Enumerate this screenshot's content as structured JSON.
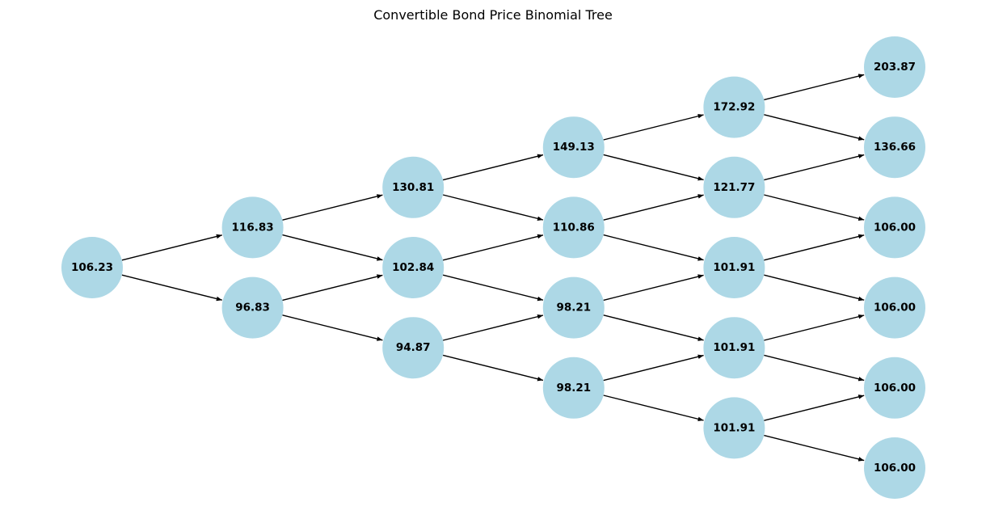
{
  "title": "Convertible Bond Price Binomial Tree",
  "colors": {
    "node_fill": "#add8e6",
    "edge": "#000000",
    "text": "#000000",
    "background": "#ffffff"
  },
  "tree": {
    "levels": [
      [
        "106.23"
      ],
      [
        "116.83",
        "96.83"
      ],
      [
        "130.81",
        "102.84",
        "94.87"
      ],
      [
        "149.13",
        "110.86",
        "98.21",
        "98.21"
      ],
      [
        "172.92",
        "121.77",
        "101.91",
        "101.91",
        "101.91"
      ],
      [
        "203.87",
        "136.66",
        "106.00",
        "106.00",
        "106.00",
        "106.00"
      ]
    ]
  }
}
